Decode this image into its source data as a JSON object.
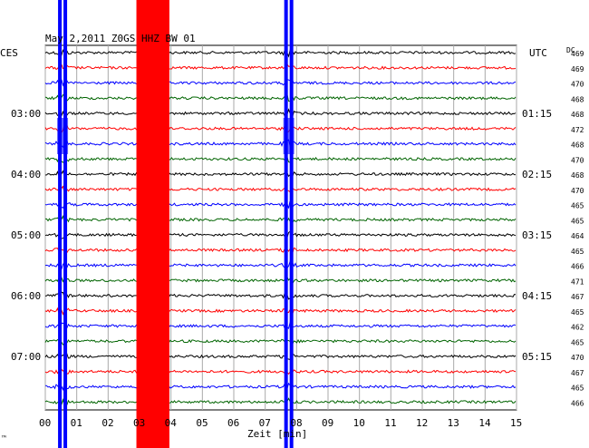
{
  "chart_data": {
    "type": "line",
    "title": "May 2,2011   Z0GS HHZ BW 01",
    "left_tz_label": "CES",
    "right_tz_label": "UTC",
    "dc_label": "DC",
    "xlabel": "Zeit [min]",
    "xlim": [
      0,
      15
    ],
    "x_ticks": [
      "00",
      "01",
      "02",
      "03",
      "04",
      "05",
      "06",
      "07",
      "08",
      "09",
      "10",
      "11",
      "12",
      "13",
      "14",
      "15"
    ],
    "left_hour_labels": [
      "03:00",
      "04:00",
      "05:00",
      "06:00",
      "07:00"
    ],
    "right_hour_labels": [
      "01:15",
      "02:15",
      "03:15",
      "04:15",
      "05:15"
    ],
    "trace_colors": [
      "#000000",
      "#ff0000",
      "#0000ff",
      "#006400"
    ],
    "dc_values": [
      "469",
      "469",
      "470",
      "468",
      "468",
      "472",
      "468",
      "470",
      "468",
      "470",
      "465",
      "465",
      "464",
      "465",
      "466",
      "471",
      "467",
      "465",
      "462",
      "465",
      "470",
      "467",
      "465",
      "466"
    ],
    "event_minutes": [
      0.55,
      7.75
    ],
    "red_band_minutes": [
      2.9,
      3.95
    ],
    "corner_mark": "™"
  }
}
